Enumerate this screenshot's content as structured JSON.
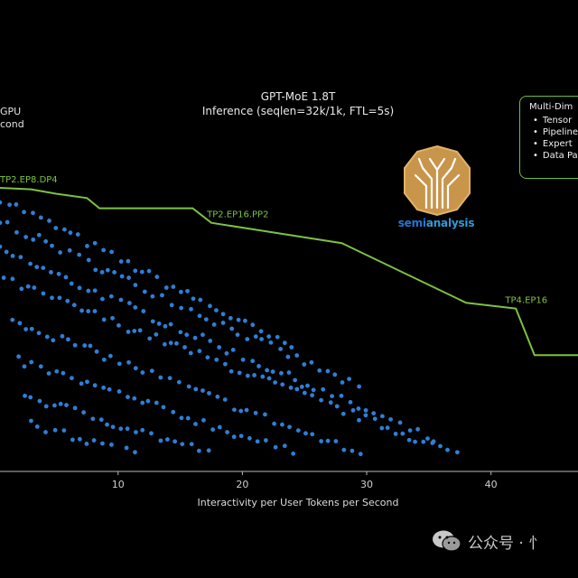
{
  "chart_data": {
    "type": "scatter",
    "title": "GPT-MoE 1.8T",
    "subtitle": "Inference (seqlen=32k/1k, FTL=5s)",
    "ylabel_fragments": [
      "GPU",
      "cond"
    ],
    "xlabel": "Interactivity per User Tokens per Second",
    "x_ticks": [
      "10",
      "20",
      "30",
      "40"
    ],
    "xlim": [
      0.5,
      47
    ],
    "ylim": [
      0,
      1
    ],
    "grid": false,
    "legend": {
      "placement": "top-right",
      "heading": "Multi-Dim",
      "items": [
        "Tensor",
        "Pipeline",
        "Expert",
        "Data Pa"
      ]
    },
    "frontier": {
      "name": "pareto frontier",
      "color": "#7dc242",
      "x": [
        0.5,
        3,
        5,
        7.5,
        8.5,
        16,
        17.5,
        28,
        38,
        42,
        43.5,
        47
      ],
      "y": [
        0.975,
        0.97,
        0.955,
        0.94,
        0.905,
        0.905,
        0.855,
        0.785,
        0.58,
        0.56,
        0.4,
        0.4
      ],
      "labels": [
        {
          "text": "TP2.EP8.DP4",
          "x": 0.5,
          "y": 0.975
        },
        {
          "text": "TP2.EP16.PP2",
          "x": 17,
          "y": 0.855
        },
        {
          "text": "TP4.EP16",
          "x": 41,
          "y": 0.56
        }
      ]
    },
    "series": [
      {
        "name": "",
        "color": "#2e7fd6",
        "x": [],
        "y": []
      }
    ]
  },
  "branding": {
    "logo_text_a": "semi",
    "logo_text_b": "analysis",
    "watermark": "公众号 · 忄"
  },
  "colors": {
    "background": "#000000",
    "points": "#2e7fd6",
    "frontier": "#7dc242",
    "axis": "#b8b8b8"
  }
}
